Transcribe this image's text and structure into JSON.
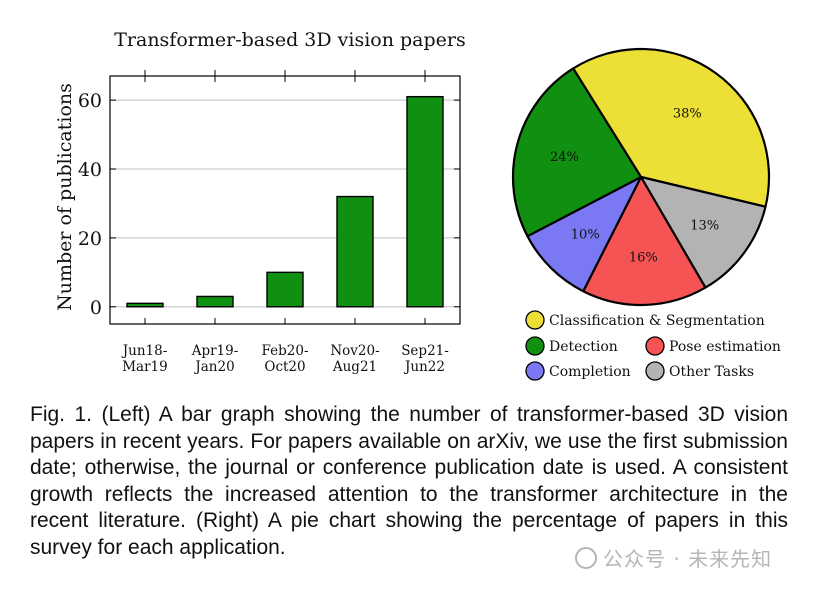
{
  "chart_data": [
    {
      "type": "bar",
      "title": "Transformer-based 3D vision papers",
      "ylabel": "Number of publications",
      "xlabel": "",
      "categories": [
        [
          "Jun18-",
          "Mar19"
        ],
        [
          "Apr19-",
          "Jan20"
        ],
        [
          "Feb20-",
          "Oct20"
        ],
        [
          "Nov20-",
          "Aug21"
        ],
        [
          "Sep21-",
          "Jun22"
        ]
      ],
      "values": [
        1,
        3,
        10,
        32,
        61
      ],
      "ylim": [
        -5,
        67
      ],
      "yticks": [
        0,
        20,
        40,
        60
      ],
      "grid": true,
      "colors": {
        "bar": "#109010",
        "grid": "#cccccc"
      }
    },
    {
      "type": "pie",
      "slices": [
        {
          "label": "Classification & Segmentation",
          "value": 38,
          "text": "38%",
          "color": "#ecdf35"
        },
        {
          "label": "Other Tasks",
          "value": 13,
          "text": "13%",
          "color": "#b3b3b3"
        },
        {
          "label": "Pose estimation",
          "value": 16,
          "text": "16%",
          "color": "#f65454"
        },
        {
          "label": "Completion",
          "value": 10,
          "text": "10%",
          "color": "#7a79f3"
        },
        {
          "label": "Detection",
          "value": 24,
          "text": "24%",
          "color": "#118f11"
        }
      ],
      "legend": [
        "Classification & Segmentation",
        "Detection",
        "Pose estimation",
        "Completion",
        "Other Tasks"
      ]
    }
  ],
  "caption": "Fig. 1. (Left) A bar graph showing the number of transformer-based 3D vision papers in recent years. For papers available on arXiv, we use the first submission date; otherwise, the journal or conference publication date is used. A consistent growth reflects the increased attention to the transformer architecture in the recent literature. (Right) A pie chart showing the percentage of papers in this survey for each application.",
  "watermark": "公众号 · 未来先知"
}
